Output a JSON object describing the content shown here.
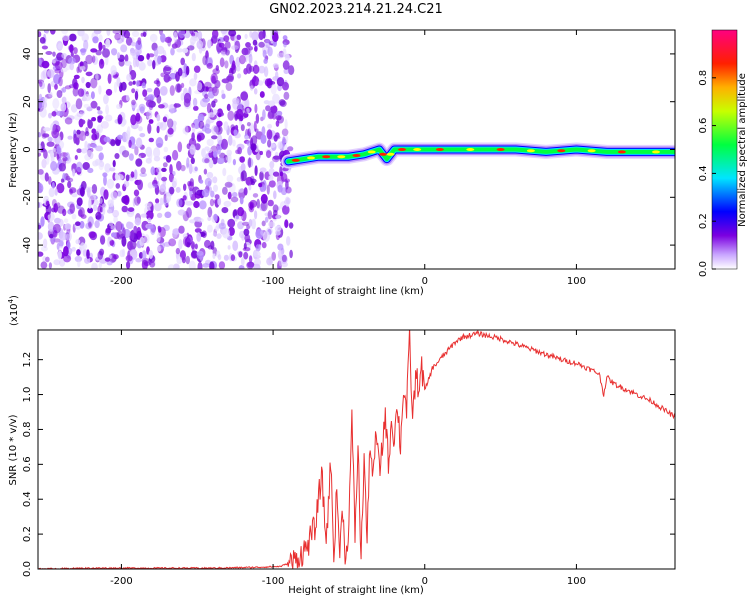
{
  "title": "GN02.2023.214.21.24.C21",
  "chart_data": [
    {
      "type": "heatmap",
      "xlabel": "Height of straight line (km)",
      "ylabel": "Frequency (Hz)",
      "xlim": [
        -255,
        165
      ],
      "ylim": [
        -50,
        50
      ],
      "xticks": [
        -200,
        -100,
        0,
        100
      ],
      "yticks": [
        -40,
        -20,
        0,
        20,
        40
      ],
      "noise_region_x": [
        -255,
        -88
      ],
      "signal_track": [
        {
          "x": -90,
          "y": -5
        },
        {
          "x": -80,
          "y": -4
        },
        {
          "x": -70,
          "y": -3
        },
        {
          "x": -60,
          "y": -3
        },
        {
          "x": -50,
          "y": -3
        },
        {
          "x": -40,
          "y": -2
        },
        {
          "x": -30,
          "y": 0
        },
        {
          "x": -25,
          "y": -4
        },
        {
          "x": -20,
          "y": 0
        },
        {
          "x": -10,
          "y": 0
        },
        {
          "x": 0,
          "y": 0
        },
        {
          "x": 20,
          "y": 0
        },
        {
          "x": 40,
          "y": 0
        },
        {
          "x": 60,
          "y": 0
        },
        {
          "x": 80,
          "y": -1
        },
        {
          "x": 100,
          "y": 0
        },
        {
          "x": 120,
          "y": -1
        },
        {
          "x": 140,
          "y": -1
        },
        {
          "x": 165,
          "y": -1
        }
      ],
      "colorbar": {
        "label": "Normalized spectral amplitude",
        "range": [
          0,
          1
        ],
        "ticks": [
          "0.0",
          "0.2",
          "0.4",
          "0.6",
          "0.8"
        ],
        "colors": [
          "#ffffff",
          "#7b00e0",
          "#0000ff",
          "#00e5ff",
          "#00ff00",
          "#ffff00",
          "#ff8000",
          "#ff0000",
          "#ff0080"
        ]
      }
    },
    {
      "type": "line",
      "xlabel": "Height of straight line (km)",
      "ylabel": "SNR (10 * v/v)",
      "multiplier": "(x10",
      "multiplier_exp": "4",
      "multiplier_close": ")",
      "xlim": [
        -255,
        165
      ],
      "ylim": [
        0,
        1.37
      ],
      "xticks": [
        -200,
        -100,
        0,
        100
      ],
      "yticks": [
        "0.0",
        "0.2",
        "0.4",
        "0.6",
        "0.8",
        "1.0",
        "1.2"
      ],
      "color": "#e83030",
      "series": [
        {
          "x": [
            -255,
            -220,
            -180,
            -140,
            -110,
            -95,
            -85,
            -78,
            -72,
            -68,
            -65,
            -62,
            -60,
            -58,
            -56,
            -54,
            -52,
            -50,
            -48,
            -46,
            -44,
            -42,
            -40,
            -38,
            -36,
            -34,
            -32,
            -30,
            -28,
            -26,
            -24,
            -22,
            -20,
            -18,
            -16,
            -14,
            -12,
            -10,
            -8,
            -6,
            -4,
            -2,
            0,
            5,
            10,
            15,
            20,
            25,
            30,
            35,
            40,
            45,
            50,
            60,
            70,
            80,
            90,
            100,
            110,
            115,
            118,
            120,
            125,
            130,
            140,
            150,
            160,
            165
          ],
          "y": [
            0.0,
            0.005,
            0.005,
            0.005,
            0.01,
            0.015,
            0.05,
            0.12,
            0.25,
            0.55,
            0.15,
            0.62,
            0.08,
            0.45,
            0.1,
            0.35,
            0.02,
            0.3,
            0.85,
            0.2,
            0.7,
            0.05,
            0.65,
            0.15,
            0.75,
            0.5,
            0.8,
            0.55,
            0.7,
            0.9,
            0.6,
            0.85,
            0.75,
            0.95,
            0.7,
            1.05,
            0.9,
            1.32,
            0.85,
            1.1,
            1.05,
            1.15,
            1.02,
            1.15,
            1.2,
            1.25,
            1.3,
            1.33,
            1.34,
            1.35,
            1.34,
            1.33,
            1.32,
            1.29,
            1.26,
            1.23,
            1.2,
            1.18,
            1.14,
            1.12,
            1.0,
            1.1,
            1.06,
            1.04,
            1.0,
            0.96,
            0.9,
            0.87
          ]
        }
      ]
    }
  ]
}
